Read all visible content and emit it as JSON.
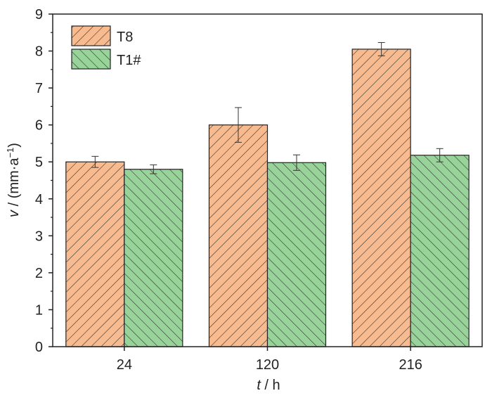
{
  "chart_data": {
    "type": "bar",
    "categories": [
      "24",
      "120",
      "216"
    ],
    "xlabel": {
      "var": "t",
      "rest": " / h"
    },
    "ylabel": {
      "var": "v",
      "rest": " / (mm·a",
      "sup": "−1",
      "close": ")"
    },
    "ylim": [
      0,
      9
    ],
    "yticks": [
      "0",
      "1",
      "2",
      "3",
      "4",
      "5",
      "6",
      "7",
      "8",
      "9"
    ],
    "grid": false,
    "legend_position": "top-left",
    "series": [
      {
        "name": "T8",
        "values": [
          5.0,
          6.0,
          8.05
        ],
        "errors": [
          0.15,
          0.47,
          0.18
        ],
        "color": "#f8bb90",
        "hatch": "forward-diagonal"
      },
      {
        "name": "T1#",
        "values": [
          4.8,
          4.98,
          5.18
        ],
        "errors": [
          0.12,
          0.21,
          0.18
        ],
        "color": "#98d39a",
        "hatch": "back-diagonal"
      }
    ]
  }
}
